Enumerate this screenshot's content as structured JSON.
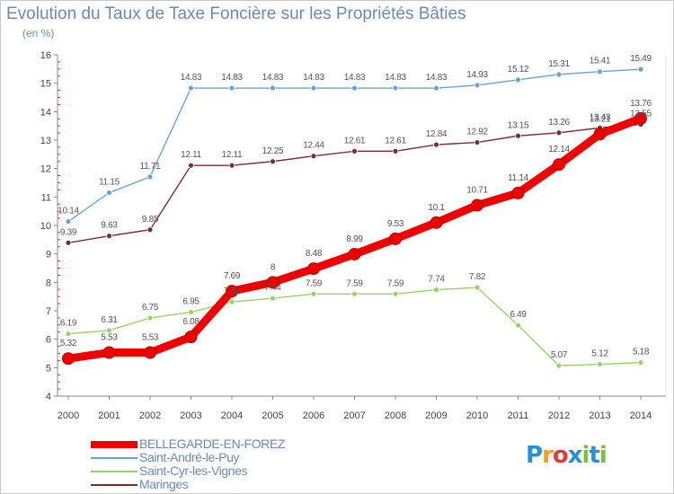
{
  "chart_data": {
    "type": "line",
    "title": "Evolution du Taux de Taxe Foncière sur les Propriétés Bâties",
    "subtitle": "(en %)",
    "x": [
      "2000",
      "2001",
      "2002",
      "2003",
      "2004",
      "2005",
      "2006",
      "2007",
      "2008",
      "2009",
      "2010",
      "2011",
      "2012",
      "2013",
      "2014"
    ],
    "ylim": [
      4,
      16
    ],
    "yticks": [
      "4",
      "5",
      "6",
      "7",
      "8",
      "9",
      "10",
      "11",
      "12",
      "13",
      "14",
      "15",
      "16"
    ],
    "grid": false,
    "legend_position": "bottom-left",
    "series": [
      {
        "name": "BELLEGARDE-EN-FOREZ",
        "color": "#ee0000",
        "emphasis": true,
        "values": [
          5.32,
          5.53,
          5.53,
          6.08,
          7.69,
          8,
          8.48,
          8.99,
          9.53,
          10.1,
          10.71,
          11.14,
          12.14,
          13.21,
          13.76
        ],
        "labels": [
          "5.32",
          "5.53",
          "5.53",
          "6.08",
          "7.69",
          "8",
          "8.48",
          "8.99",
          "9.53",
          "10.1",
          "10.71",
          "11.14",
          "12.14",
          "13.21",
          "13.76"
        ]
      },
      {
        "name": "Saint-André-le-Puy",
        "color": "#6aa2d8",
        "values": [
          10.14,
          11.15,
          11.71,
          14.83,
          14.83,
          14.83,
          14.83,
          14.83,
          14.83,
          14.83,
          14.93,
          15.12,
          15.31,
          15.41,
          15.49
        ],
        "labels": [
          "10.14",
          "11.15",
          "11.71",
          "14.83",
          "14.83",
          "14.83",
          "14.83",
          "14.83",
          "14.83",
          "14.83",
          "14.93",
          "15.12",
          "15.31",
          "15.41",
          "15.49"
        ]
      },
      {
        "name": "Saint-Cyr-les-Vignes",
        "color": "#99d366",
        "values": [
          6.19,
          6.31,
          6.75,
          6.95,
          7.31,
          7.44,
          7.59,
          7.59,
          7.59,
          7.74,
          7.82,
          6.49,
          5.07,
          5.12,
          5.18
        ],
        "labels": [
          "6.19",
          "6.31",
          "6.75",
          "6.95",
          "7.31",
          "7.44",
          "7.59",
          "7.59",
          "7.59",
          "7.74",
          "7.82",
          "6.49",
          "5.07",
          "5.12",
          "5.18"
        ]
      },
      {
        "name": "Maringes",
        "color": "#7a2f2f",
        "values": [
          9.39,
          9.63,
          9.85,
          12.11,
          12.11,
          12.25,
          12.44,
          12.61,
          12.61,
          12.84,
          12.92,
          13.15,
          13.26,
          13.43,
          13.55
        ],
        "labels": [
          "9.39",
          "9.63",
          "9.85",
          "12.11",
          "12.11",
          "12.25",
          "12.44",
          "12.61",
          "12.61",
          "12.84",
          "12.92",
          "13.15",
          "13.26",
          "13.43",
          "13.55"
        ]
      }
    ]
  },
  "brand": {
    "letters": [
      {
        "ch": "P",
        "color": "#2b8fd4"
      },
      {
        "ch": "r",
        "color": "#f2a21f"
      },
      {
        "ch": "o",
        "color": "#e23a3a"
      },
      {
        "ch": "x",
        "color": "#2b8fd4"
      },
      {
        "ch": "i",
        "color": "#7cbf3c"
      },
      {
        "ch": "t",
        "color": "#2b8fd4"
      },
      {
        "ch": "i",
        "color": "#7cbf3c"
      }
    ]
  }
}
